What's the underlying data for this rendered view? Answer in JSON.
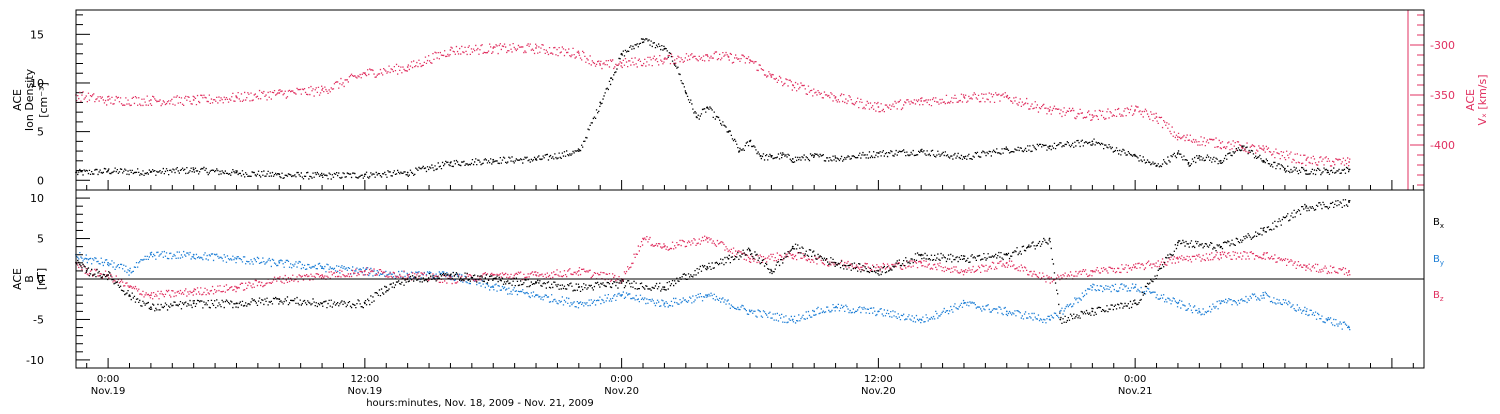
{
  "chart_data": [
    {
      "type": "scatter",
      "panel": "top",
      "x_axis": {
        "unit": "hours since Nov 18, 2009 00:00",
        "range_hours": [
          22.5,
          85.5
        ]
      },
      "left_axis": {
        "label_lines": [
          "ACE",
          "Ion Density",
          "[cm⁻³]"
        ],
        "ticks": [
          0,
          5,
          10,
          15
        ],
        "ylim": [
          -1,
          17.5
        ]
      },
      "right_axis": {
        "label": "Vₓ [km/s]",
        "label_super": "ACE",
        "ticks": [
          -300,
          -350,
          -400
        ],
        "ylim": [
          -445,
          -265
        ],
        "color": "#e03060"
      },
      "series": [
        {
          "color": "#000000",
          "axis": "left",
          "x": [
            22.5,
            24,
            26,
            28,
            30,
            32,
            34,
            36,
            38,
            40,
            42,
            44,
            46,
            47,
            47.5,
            48,
            49,
            50,
            50.5,
            51,
            51.5,
            52,
            53,
            53.5,
            54,
            54.5,
            55,
            55.5,
            56,
            57,
            58,
            60,
            62,
            64,
            66,
            68,
            70,
            72,
            73,
            74,
            74.5,
            75,
            76,
            77,
            78,
            79,
            80,
            81,
            82
          ],
          "values": [
            0.8,
            1.0,
            0.9,
            1.1,
            0.8,
            0.6,
            0.5,
            0.6,
            0.8,
            1.8,
            2.1,
            2.2,
            3.0,
            8.0,
            10.5,
            13.0,
            14.5,
            13.5,
            12.0,
            9.0,
            6.5,
            7.5,
            5.0,
            3.0,
            4.0,
            2.5,
            2.4,
            2.6,
            2.2,
            2.5,
            2.3,
            2.8,
            3.0,
            2.4,
            3.2,
            3.5,
            4.0,
            2.5,
            1.5,
            2.8,
            1.8,
            2.5,
            2.0,
            3.5,
            2.0,
            1.2,
            1.0,
            1.0,
            1.1
          ]
        },
        {
          "color": "#e03060",
          "axis": "right",
          "x": [
            22.5,
            24,
            26,
            28,
            30,
            32,
            34,
            36,
            38,
            40,
            42,
            44,
            46,
            47,
            48,
            50,
            52,
            53,
            54,
            55,
            56,
            58,
            60,
            62,
            64,
            66,
            68,
            70,
            72,
            73,
            74,
            76,
            78,
            80,
            82
          ],
          "values": [
            -350,
            -355,
            -355,
            -355,
            -352,
            -348,
            -345,
            -328,
            -322,
            -305,
            -303,
            -303,
            -308,
            -320,
            -318,
            -314,
            -310,
            -312,
            -315,
            -332,
            -340,
            -352,
            -362,
            -356,
            -352,
            -352,
            -365,
            -370,
            -365,
            -372,
            -392,
            -398,
            -405,
            -415,
            -417
          ]
        }
      ]
    },
    {
      "type": "scatter",
      "panel": "bottom",
      "x_axis": {
        "unit": "hours since Nov 18, 2009 00:00",
        "range_hours": [
          22.5,
          85.5
        ],
        "major_ticks_hours": [
          24,
          36,
          48,
          60,
          72,
          84
        ],
        "tick_labels": [
          [
            "0:00",
            "Nov.19"
          ],
          [
            "12:00",
            "Nov.19"
          ],
          [
            "0:00",
            "Nov.20"
          ],
          [
            "12:00",
            "Nov.20"
          ],
          [
            "0:00",
            "Nov.21"
          ]
        ],
        "title": "hours:minutes, Nov. 18, 2009 - Nov. 21, 2009"
      },
      "left_axis": {
        "label_lines": [
          "ACE",
          "B",
          "[nT]"
        ],
        "ticks": [
          10,
          5,
          0,
          -5,
          -10
        ],
        "ylim": [
          -11,
          11
        ]
      },
      "series": [
        {
          "name": "B",
          "name_sub": "x",
          "color": "#000000",
          "x": [
            22.5,
            23,
            24,
            25,
            26,
            28,
            30,
            32,
            34,
            36,
            37,
            38,
            40,
            42,
            44,
            46,
            48,
            50,
            51,
            52,
            53,
            54,
            55,
            56,
            58,
            60,
            62,
            64,
            66,
            67,
            68,
            68.5,
            70,
            72,
            74,
            76,
            78,
            80,
            82
          ],
          "values": [
            2,
            1,
            0.5,
            -2,
            -3.5,
            -3,
            -3,
            -2.5,
            -3,
            -3,
            -1,
            0,
            0.5,
            0,
            -0.5,
            -1,
            -0.5,
            -1,
            0.5,
            1.5,
            2.5,
            3.5,
            1,
            4,
            2,
            1,
            3,
            2.5,
            3,
            4,
            5,
            -5,
            -4,
            -3,
            4.5,
            4,
            6,
            9,
            9.5
          ]
        },
        {
          "name": "B",
          "name_sub": "y",
          "color": "#1e7fd6",
          "x": [
            22.5,
            23,
            24,
            25,
            26,
            28,
            30,
            32,
            34,
            36,
            38,
            40,
            42,
            44,
            46,
            48,
            50,
            52,
            54,
            56,
            57,
            58,
            60,
            62,
            64,
            66,
            68,
            70,
            72,
            74,
            75,
            76,
            78,
            80,
            81,
            82
          ],
          "values": [
            3,
            2.5,
            2,
            1,
            3,
            3,
            2.5,
            2,
            1.5,
            1,
            0.5,
            0.5,
            -1,
            -2,
            -3,
            -2,
            -3,
            -2,
            -4,
            -5,
            -4,
            -3.5,
            -4,
            -5,
            -3,
            -4,
            -5,
            -1,
            -1,
            -3,
            -4,
            -3,
            -2,
            -4,
            -5,
            -6
          ]
        },
        {
          "name": "B",
          "name_sub": "z",
          "color": "#e03060",
          "x": [
            22.5,
            23,
            24,
            25,
            26,
            28,
            30,
            32,
            34,
            36,
            38,
            40,
            42,
            44,
            46,
            48,
            49,
            50,
            52,
            54,
            56,
            58,
            60,
            62,
            64,
            66,
            68,
            70,
            72,
            74,
            76,
            78,
            80,
            82
          ],
          "values": [
            2,
            1,
            0.5,
            -1,
            -2,
            -1.5,
            -1,
            0,
            0.5,
            1,
            0.5,
            0,
            0.5,
            0.5,
            1,
            0,
            5,
            4,
            5,
            2.5,
            3,
            2,
            1.5,
            2,
            1,
            2,
            0,
            1,
            1.5,
            2.5,
            3,
            3,
            1.5,
            1
          ]
        }
      ]
    }
  ]
}
